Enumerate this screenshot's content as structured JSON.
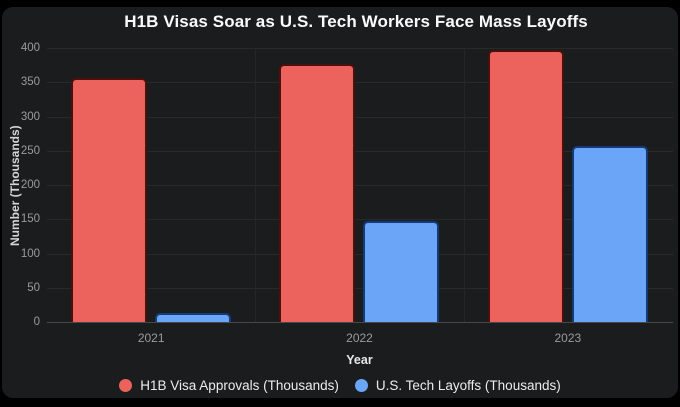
{
  "frame": {
    "outer_background": "#000000",
    "card_background": "#1b1c1e"
  },
  "chart_data": {
    "type": "bar",
    "title": "H1B Visas Soar as U.S. Tech Workers Face Mass Layoffs",
    "xlabel": "Year",
    "ylabel": "Number (Thousands)",
    "categories": [
      "2021",
      "2022",
      "2023"
    ],
    "series": [
      {
        "name": "H1B Visa Approvals (Thousands)",
        "key": "h1b-visa-approvals",
        "color": "#ec625d",
        "border_color": "#4a100d",
        "values": [
          356,
          376,
          397
        ]
      },
      {
        "name": "U.S. Tech Layoffs (Thousands)",
        "key": "us-tech-layoffs",
        "color": "#6aa5f8",
        "border_color": "#143b78",
        "values": [
          13,
          148,
          257
        ]
      }
    ],
    "ylim": [
      0,
      400
    ],
    "yticks": [
      0,
      50,
      100,
      150,
      200,
      250,
      300,
      350,
      400
    ],
    "grid": true,
    "legend_position": "bottom",
    "text_colors": {
      "title": "#fafafa",
      "ticks": "#9b9b9b",
      "axis_titles": "#d6d6d6",
      "legend": "#ececec"
    }
  }
}
